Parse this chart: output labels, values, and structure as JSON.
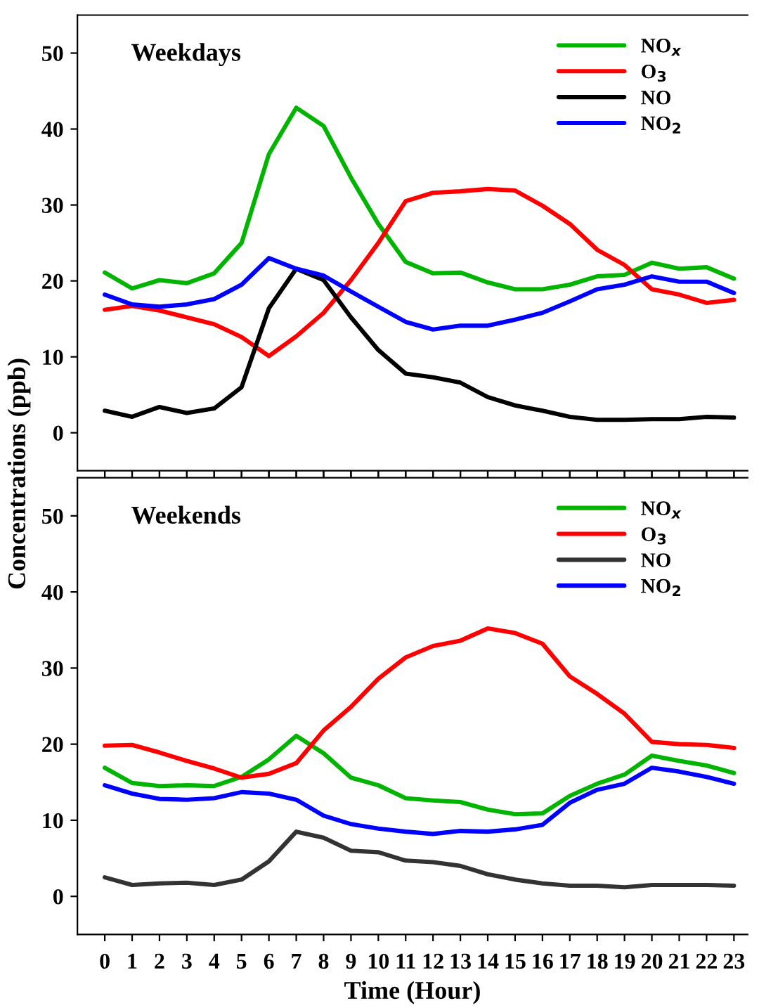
{
  "chart_data": [
    {
      "type": "line",
      "title": "Weekdays",
      "ylabel": "Concentrations (ppb)",
      "x": [
        0,
        1,
        2,
        3,
        4,
        5,
        6,
        7,
        8,
        9,
        10,
        11,
        12,
        13,
        14,
        15,
        16,
        17,
        18,
        19,
        20,
        21,
        22,
        23
      ],
      "xlim": [
        -1,
        23.5
      ],
      "xticks": [
        0,
        1,
        2,
        3,
        4,
        5,
        6,
        7,
        8,
        9,
        10,
        11,
        12,
        13,
        14,
        15,
        16,
        17,
        18,
        19,
        20,
        21,
        22,
        23
      ],
      "ylim": [
        -5,
        55
      ],
      "yticks": [
        0,
        10,
        20,
        30,
        40,
        50
      ],
      "tick_labels": "y",
      "legend": "top right",
      "grid": false,
      "marker": "none",
      "line_style": "solid",
      "series": [
        {
          "name": "NO$_{x}$",
          "color": "#00b400",
          "values": [
            21.1,
            19.0,
            20.1,
            19.7,
            21.0,
            25.0,
            36.7,
            42.8,
            40.4,
            33.6,
            27.5,
            22.5,
            21.0,
            21.1,
            19.8,
            18.9,
            18.9,
            19.5,
            20.6,
            20.8,
            22.4,
            21.6,
            21.8,
            20.3
          ]
        },
        {
          "name": "O$_{3}$",
          "color": "#ff0000",
          "values": [
            16.2,
            16.7,
            16.1,
            15.2,
            14.3,
            12.6,
            10.1,
            12.7,
            15.8,
            20.1,
            25.0,
            30.5,
            31.6,
            31.8,
            32.1,
            31.9,
            29.9,
            27.5,
            24.1,
            22.1,
            18.9,
            18.2,
            17.1,
            17.5
          ]
        },
        {
          "name": "NO",
          "color": "#000000",
          "values": [
            2.9,
            2.1,
            3.4,
            2.6,
            3.2,
            6.0,
            16.4,
            21.6,
            20.1,
            15.2,
            10.9,
            7.8,
            7.3,
            6.6,
            4.7,
            3.6,
            2.9,
            2.1,
            1.7,
            1.7,
            1.8,
            1.8,
            2.1,
            2.0
          ]
        },
        {
          "name": "NO$_{2}$",
          "color": "#0000ff",
          "values": [
            18.2,
            16.9,
            16.6,
            16.9,
            17.6,
            19.5,
            23.0,
            21.6,
            20.7,
            18.6,
            16.6,
            14.6,
            13.6,
            14.1,
            14.1,
            14.9,
            15.8,
            17.3,
            18.9,
            19.5,
            20.6,
            19.9,
            19.9,
            18.4
          ]
        }
      ]
    },
    {
      "type": "line",
      "title": "Weekends",
      "xlabel": "Time (Hour)",
      "x": [
        0,
        1,
        2,
        3,
        4,
        5,
        6,
        7,
        8,
        9,
        10,
        11,
        12,
        13,
        14,
        15,
        16,
        17,
        18,
        19,
        20,
        21,
        22,
        23
      ],
      "xlim": [
        -1,
        23.5
      ],
      "xticks": [
        0,
        1,
        2,
        3,
        4,
        5,
        6,
        7,
        8,
        9,
        10,
        11,
        12,
        13,
        14,
        15,
        16,
        17,
        18,
        19,
        20,
        21,
        22,
        23
      ],
      "ylim": [
        -5,
        55
      ],
      "yticks": [
        0,
        10,
        20,
        30,
        40,
        50
      ],
      "legend": "top right",
      "grid": false,
      "marker": "none",
      "line_style": "solid",
      "series": [
        {
          "name": "NO$_{x}$",
          "color": "#00b400",
          "values": [
            16.9,
            14.9,
            14.5,
            14.6,
            14.5,
            15.7,
            18.0,
            21.1,
            18.8,
            15.6,
            14.6,
            12.9,
            12.6,
            12.4,
            11.4,
            10.8,
            10.9,
            13.2,
            14.8,
            16.0,
            18.5,
            17.8,
            17.2,
            16.2
          ]
        },
        {
          "name": "O$_{3}$",
          "color": "#ff0000",
          "values": [
            19.8,
            19.9,
            18.9,
            17.8,
            16.8,
            15.6,
            16.1,
            17.5,
            21.8,
            24.9,
            28.6,
            31.4,
            32.9,
            33.6,
            35.2,
            34.6,
            33.2,
            28.9,
            26.6,
            24.0,
            20.3,
            20.0,
            19.9,
            19.5
          ]
        },
        {
          "name": "NO",
          "color": "#333333",
          "values": [
            2.5,
            1.5,
            1.7,
            1.8,
            1.5,
            2.2,
            4.6,
            8.5,
            7.7,
            6.0,
            5.8,
            4.7,
            4.5,
            4.0,
            2.9,
            2.2,
            1.7,
            1.4,
            1.4,
            1.2,
            1.5,
            1.5,
            1.5,
            1.4
          ]
        },
        {
          "name": "NO$_{2}$",
          "color": "#0000ff",
          "values": [
            14.6,
            13.5,
            12.8,
            12.7,
            12.9,
            13.7,
            13.5,
            12.7,
            10.6,
            9.5,
            8.9,
            8.5,
            8.2,
            8.6,
            8.5,
            8.8,
            9.4,
            12.3,
            14.0,
            14.8,
            16.9,
            16.4,
            15.7,
            14.8
          ]
        }
      ]
    }
  ]
}
